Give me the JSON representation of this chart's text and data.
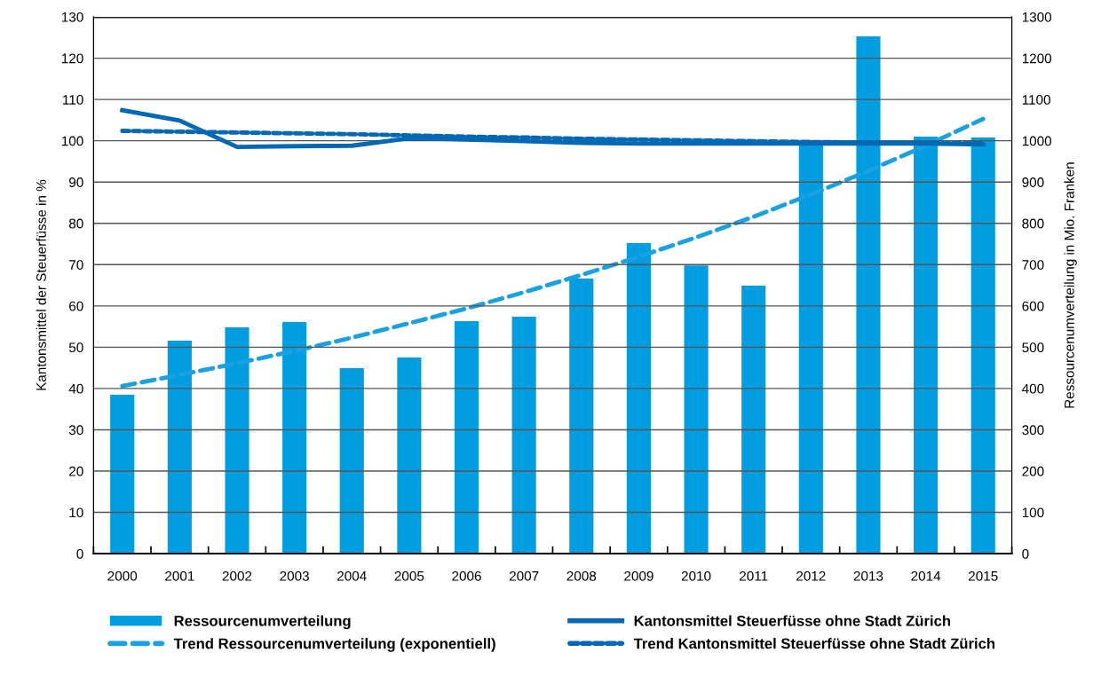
{
  "chart_data": {
    "type": "bar",
    "categories": [
      "2000",
      "2001",
      "2002",
      "2003",
      "2004",
      "2005",
      "2006",
      "2007",
      "2008",
      "2009",
      "2010",
      "2011",
      "2012",
      "2013",
      "2014",
      "2015"
    ],
    "ylabel": "Kantonsmittel der Steuerfüsse in %",
    "y2label": "Ressourcenumverteilung in Mio. Franken",
    "ylim": [
      0,
      130
    ],
    "yticks": [
      0,
      10,
      20,
      30,
      40,
      50,
      60,
      70,
      80,
      90,
      100,
      110,
      120,
      130
    ],
    "y2lim": [
      0,
      1300
    ],
    "y2ticks": [
      0,
      100,
      200,
      300,
      400,
      500,
      600,
      700,
      800,
      900,
      1000,
      1100,
      1200,
      1300
    ],
    "grid": "y",
    "legend": "bottom",
    "marker": "none",
    "series": [
      {
        "name": "Ressourcenumverteilung",
        "axis": "y2",
        "color": "#009ee0",
        "values": [
          385,
          516,
          548,
          561,
          449,
          475,
          563,
          574,
          666,
          752,
          698,
          649,
          997,
          1253,
          1010,
          1008
        ]
      },
      {
        "name": "Kantonsmittel Steuerfüsse ohne Stadt Zürich",
        "type": "line",
        "line_style": "solid",
        "color": "#0068b4",
        "values": [
          107.4,
          104.9,
          98.5,
          98.7,
          98.8,
          100.6,
          100.3,
          99.9,
          99.5,
          99.3,
          99.3,
          99.3,
          99.3,
          99.3,
          99.3,
          99.1
        ]
      },
      {
        "name": "Trend Ressourcenumverteilung (exponentiell)",
        "type": "line",
        "axis": "y2",
        "line_style": "dashed",
        "color": "#1ba1e2",
        "values": [
          406,
          433,
          461,
          491,
          523,
          558,
          594,
          633,
          675,
          719,
          766,
          816,
          870,
          927,
          988,
          1053
        ]
      },
      {
        "name": "Trend Kantonsmittel Steuerfüsse ohne Stadt Zürich",
        "type": "line",
        "line_style": "dotted",
        "color": "#0068b4",
        "values": [
          102.4,
          102.2,
          102.0,
          101.8,
          101.6,
          101.3,
          101.0,
          100.8,
          100.5,
          100.3,
          100.1,
          99.9,
          99.7,
          99.6,
          99.5,
          99.4
        ]
      }
    ]
  }
}
